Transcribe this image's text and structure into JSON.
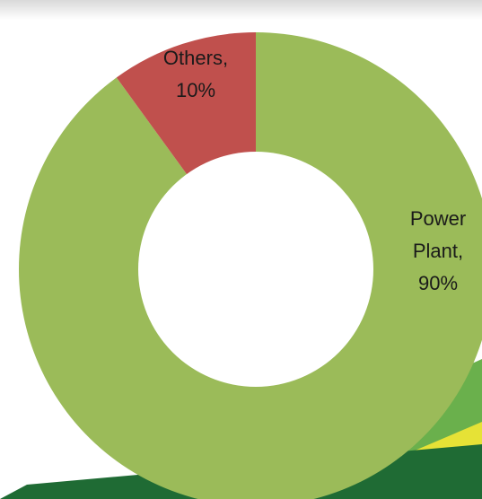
{
  "chart_data": {
    "type": "donut",
    "values": [
      90,
      10
    ],
    "value_labels": [
      "Power Plant, 90%",
      "Others, 10%"
    ],
    "colors": [
      "#9bbb59",
      "#c0504d"
    ]
  }
}
